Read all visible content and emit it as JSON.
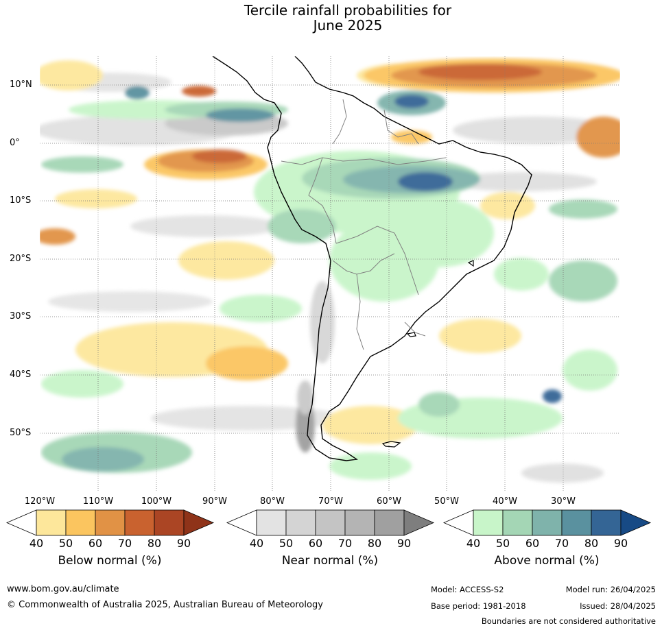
{
  "title": {
    "line1": "Tercile rainfall probabilities for",
    "line2": "June 2025"
  },
  "map": {
    "lat_labels": [
      "10°N",
      "0°",
      "10°S",
      "20°S",
      "30°S",
      "40°S",
      "50°S"
    ],
    "lon_labels": [
      "120°W",
      "110°W",
      "100°W",
      "90°W",
      "80°W",
      "70°W",
      "60°W",
      "50°W",
      "40°W",
      "30°W"
    ]
  },
  "colorbars": {
    "below": {
      "title": "Below normal (%)",
      "ticks": [
        "40",
        "50",
        "60",
        "70",
        "80",
        "90"
      ],
      "colors": [
        "#ffffff",
        "#fde79b",
        "#fbc55f",
        "#e19245",
        "#c9622f",
        "#ab4524",
        "#8f3319"
      ]
    },
    "near": {
      "title": "Near normal (%)",
      "ticks": [
        "40",
        "50",
        "60",
        "70",
        "80",
        "90"
      ],
      "colors": [
        "#ffffff",
        "#e3e3e3",
        "#d4d4d4",
        "#c4c4c4",
        "#b4b4b4",
        "#a0a0a0",
        "#7e7e7e"
      ]
    },
    "above": {
      "title": "Above normal (%)",
      "ticks": [
        "40",
        "50",
        "60",
        "70",
        "80",
        "90"
      ],
      "colors": [
        "#ffffff",
        "#c8f5c9",
        "#a4d6b5",
        "#7fb3ab",
        "#5a919f",
        "#346595",
        "#174a85"
      ]
    }
  },
  "footer": {
    "website": "www.bom.gov.au/climate",
    "copyright": "© Commonwealth of Australia 2025, Australian Bureau of Meteorology",
    "model": "Model: ACCESS-S2",
    "base_period": "Base period: 1981-2018",
    "model_run": "Model run: 26/04/2025",
    "issued": "Issued: 28/04/2025",
    "disclaimer": "Boundaries are not considered authoritative"
  }
}
